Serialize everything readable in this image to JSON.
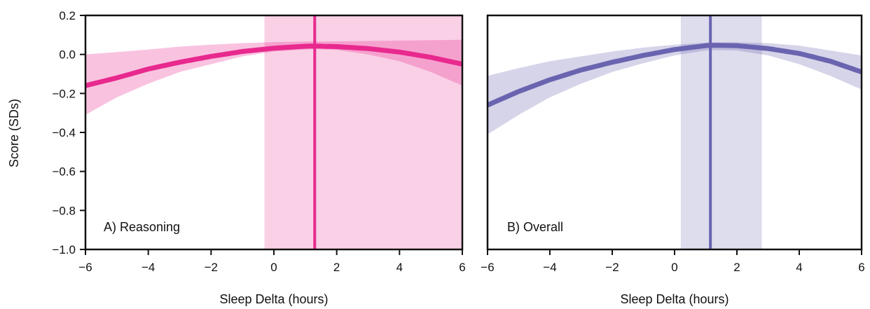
{
  "chart_data": [
    {
      "type": "line",
      "panel_label": "A) Reasoning",
      "xlabel": "Sleep Delta (hours)",
      "ylabel": "Score (SDs)",
      "xlim": [
        -6,
        6
      ],
      "ylim": [
        -1.0,
        0.2
      ],
      "xticks": [
        -6,
        -4,
        -2,
        0,
        2,
        4,
        6
      ],
      "yticks": [
        -1.0,
        -0.8,
        -0.6,
        -0.4,
        -0.2,
        0.0,
        0.2
      ],
      "ytick_labels": [
        "−1.0",
        "−0.8",
        "−0.6",
        "−0.4",
        "−0.2",
        "0.0",
        "0.2"
      ],
      "xtick_labels": [
        "−6",
        "−4",
        "−2",
        "0",
        "2",
        "4",
        "6"
      ],
      "color": "#e8298e",
      "series": [
        {
          "x": [
            -6,
            -5,
            -4,
            -3,
            -2,
            -1,
            0,
            1,
            1.3,
            2,
            3,
            4,
            5,
            6
          ],
          "y": [
            -0.16,
            -0.12,
            -0.075,
            -0.04,
            -0.01,
            0.015,
            0.032,
            0.042,
            0.043,
            0.04,
            0.03,
            0.012,
            -0.015,
            -0.05
          ],
          "ci_lower": [
            -0.31,
            -0.22,
            -0.15,
            -0.09,
            -0.05,
            -0.01,
            0.015,
            0.025,
            0.027,
            0.023,
            0.0,
            -0.035,
            -0.09,
            -0.16
          ],
          "ci_upper": [
            0.0,
            0.012,
            0.025,
            0.04,
            0.05,
            0.058,
            0.063,
            0.066,
            0.066,
            0.067,
            0.069,
            0.071,
            0.073,
            0.075
          ]
        }
      ],
      "vline": {
        "x": 1.3,
        "ci": [
          -0.3,
          6
        ]
      }
    },
    {
      "type": "line",
      "panel_label": "B) Overall",
      "xlabel": "Sleep Delta (hours)",
      "ylabel": "",
      "xlim": [
        -6,
        6
      ],
      "ylim": [
        -1.0,
        0.2
      ],
      "xticks": [
        -6,
        -4,
        -2,
        0,
        2,
        4,
        6
      ],
      "xtick_labels": [
        "−6",
        "−4",
        "−2",
        "0",
        "2",
        "4",
        "6"
      ],
      "color": "#6a64b0",
      "series": [
        {
          "x": [
            -6,
            -5,
            -4,
            -3,
            -2,
            -1,
            0,
            1,
            1.15,
            2,
            3,
            4,
            5,
            6
          ],
          "y": [
            -0.26,
            -0.19,
            -0.13,
            -0.08,
            -0.04,
            -0.005,
            0.025,
            0.045,
            0.047,
            0.045,
            0.03,
            0.005,
            -0.035,
            -0.09
          ],
          "ci_lower": [
            -0.41,
            -0.31,
            -0.22,
            -0.15,
            -0.09,
            -0.045,
            -0.005,
            0.02,
            0.022,
            0.02,
            -0.005,
            -0.05,
            -0.11,
            -0.18
          ],
          "ci_upper": [
            -0.11,
            -0.07,
            -0.035,
            -0.01,
            0.015,
            0.035,
            0.05,
            0.06,
            0.062,
            0.062,
            0.058,
            0.045,
            0.02,
            -0.005
          ]
        }
      ],
      "vline": {
        "x": 1.15,
        "ci": [
          0.2,
          2.8
        ]
      }
    }
  ]
}
